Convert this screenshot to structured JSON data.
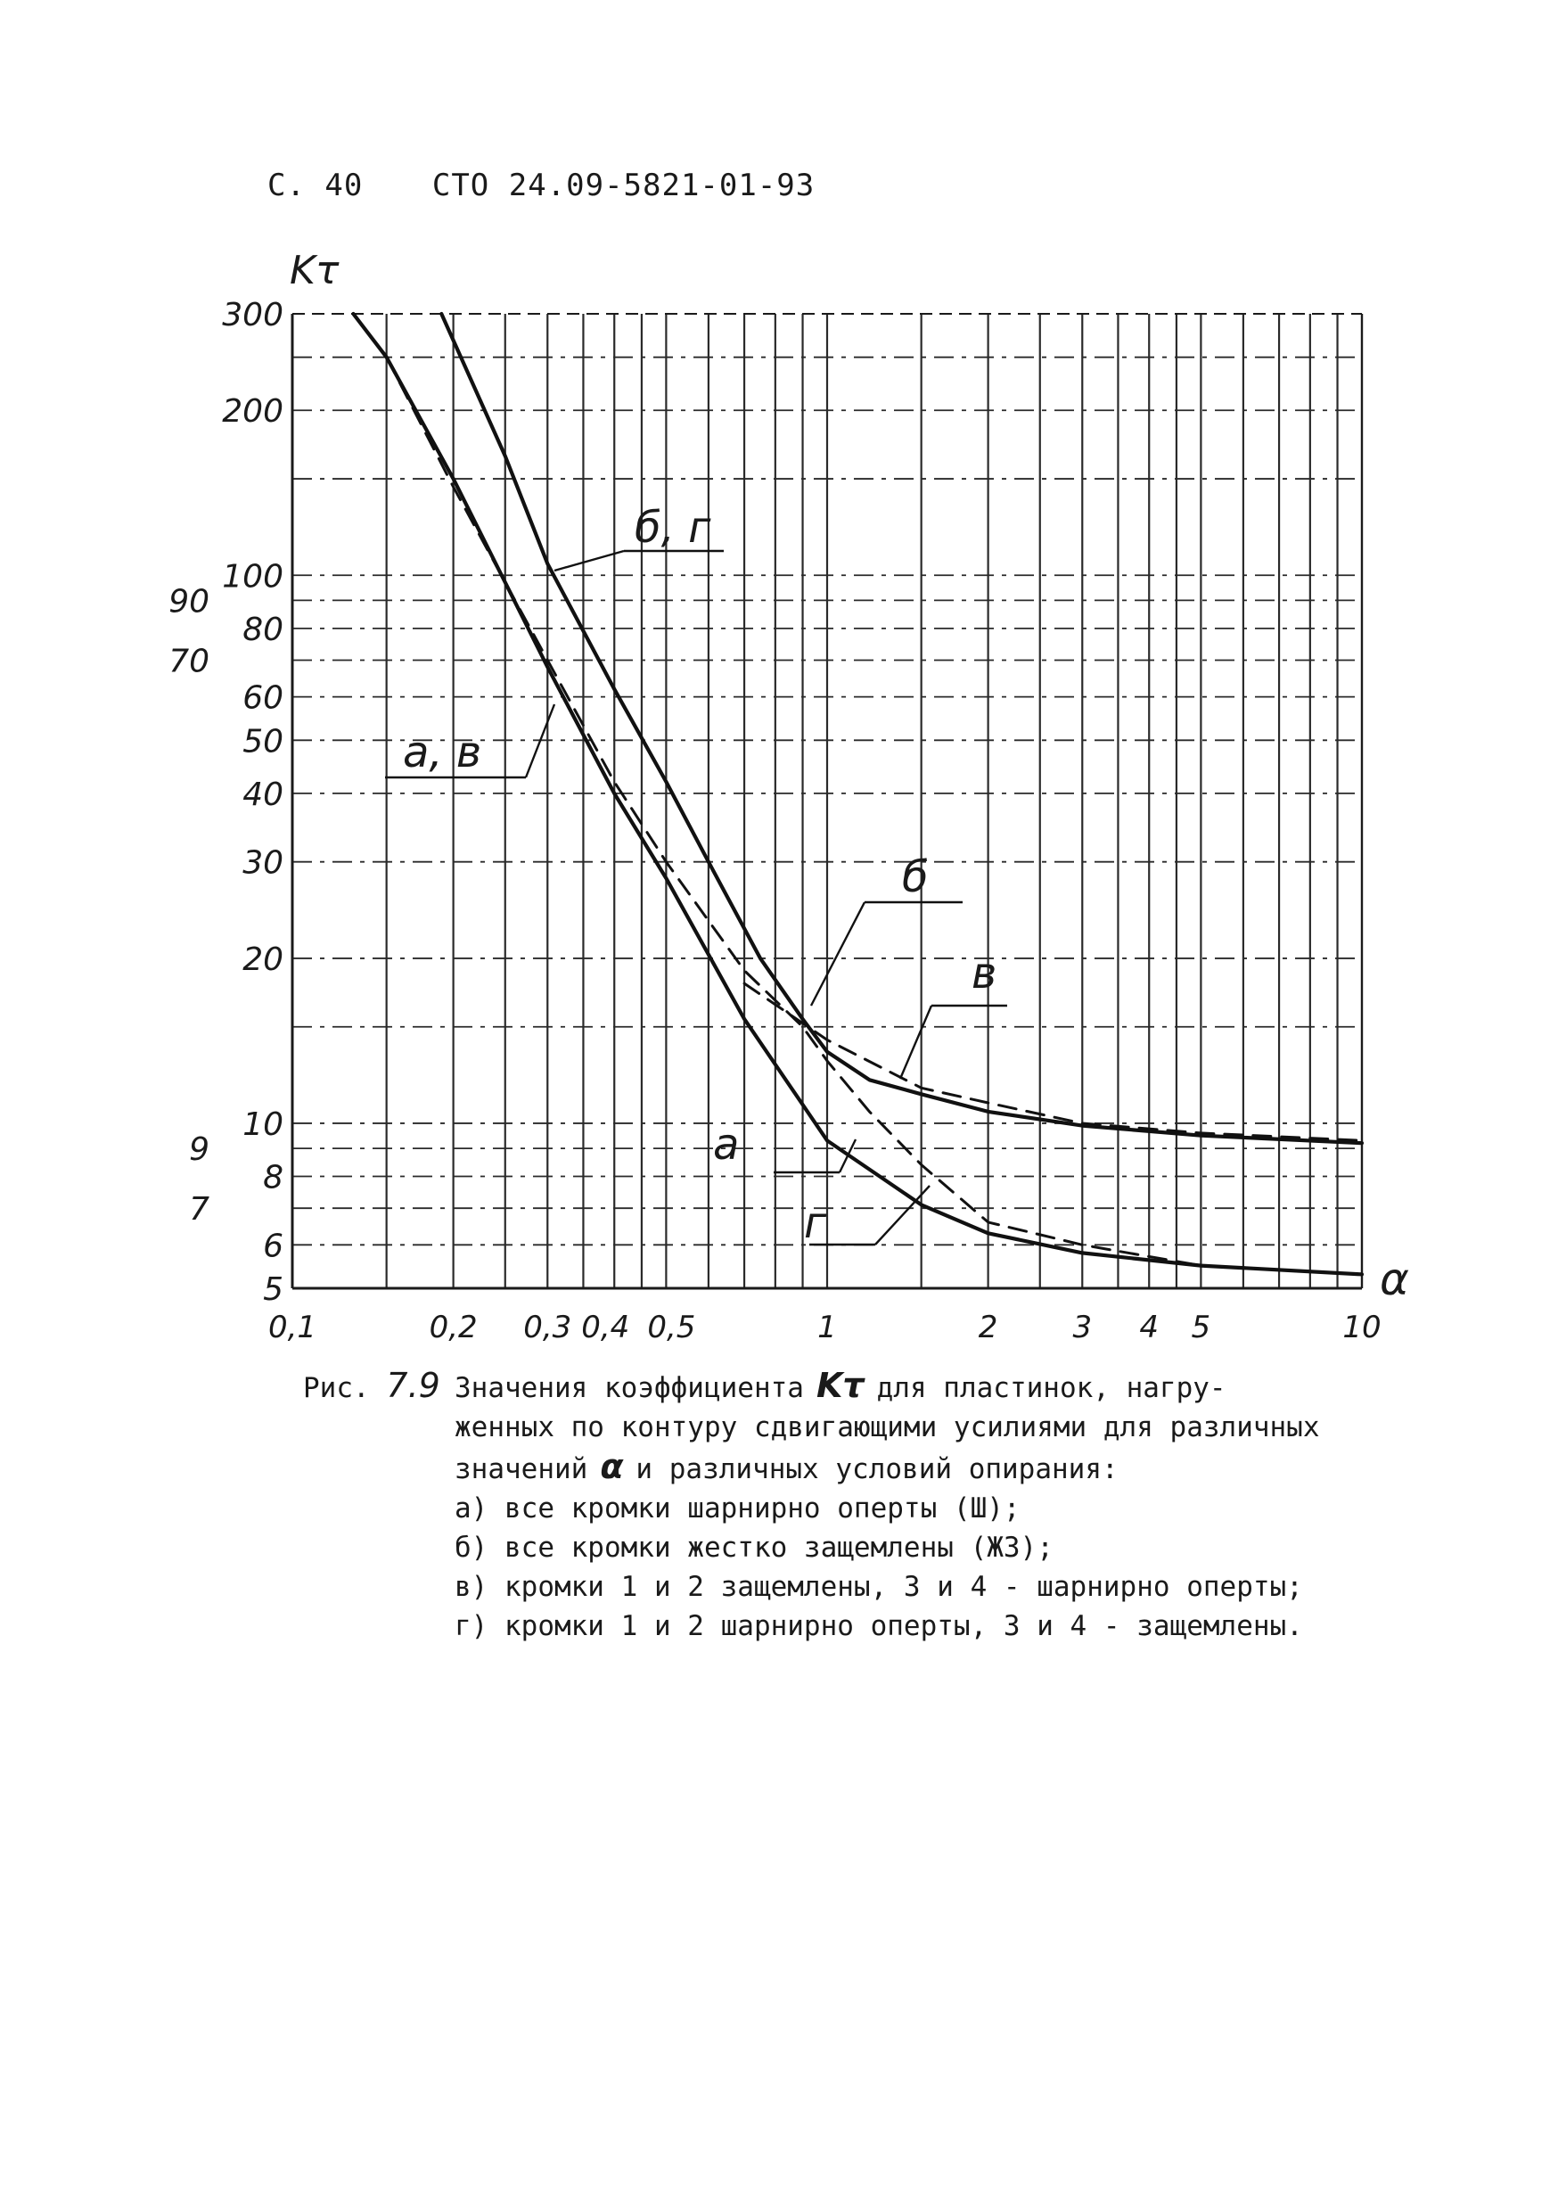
{
  "header": {
    "page": "С. 40",
    "standard": "СТО 24.09-5821-01-93"
  },
  "chart_data": {
    "type": "line",
    "xscale": "log",
    "yscale": "log",
    "xlim": [
      0.1,
      10
    ],
    "ylim": [
      5,
      300
    ],
    "ylabel": "Kτ",
    "xlabel": "α",
    "x_ticks": [
      "0,1",
      "0,2",
      "0,3",
      "0,4",
      "0,5",
      "1",
      "2",
      "3",
      "4",
      "5",
      "10"
    ],
    "y_ticks": [
      "5",
      "6",
      "7",
      "8",
      "9",
      "10",
      "20",
      "30",
      "40",
      "50",
      "60",
      "70",
      "80",
      "90",
      "100",
      "200",
      "300"
    ],
    "grid": true,
    "series": [
      {
        "name": "а",
        "style": "solid",
        "x": [
          0.13,
          0.15,
          0.2,
          0.3,
          0.4,
          0.5,
          0.7,
          1.0,
          1.5,
          2,
          3,
          5,
          10
        ],
        "y": [
          300,
          250,
          150,
          68,
          40,
          28,
          15.5,
          9.3,
          7.1,
          6.3,
          5.8,
          5.5,
          5.3
        ]
      },
      {
        "name": "б",
        "style": "dashed",
        "x": [
          0.7,
          1.0,
          1.5,
          2,
          3,
          5,
          10
        ],
        "y": [
          18,
          14.2,
          11.6,
          10.9,
          10.0,
          9.6,
          9.3
        ]
      },
      {
        "name": "в",
        "style": "solid",
        "x": [
          0.19,
          0.25,
          0.3,
          0.4,
          0.5,
          0.6,
          0.75,
          0.9,
          1.0,
          1.2,
          1.5,
          2,
          3,
          5,
          10
        ],
        "y": [
          300,
          165,
          105,
          62,
          42,
          30,
          20,
          15.5,
          13.5,
          12.0,
          11.3,
          10.5,
          9.9,
          9.5,
          9.2
        ]
      },
      {
        "name": "г",
        "style": "dashed",
        "x": [
          0.15,
          0.2,
          0.3,
          0.4,
          0.5,
          0.7,
          0.9,
          1.0,
          1.2,
          1.5,
          2,
          3,
          5,
          10
        ],
        "y": [
          250,
          145,
          70,
          42,
          30,
          19,
          15,
          13,
          10.5,
          8.4,
          6.6,
          6.0,
          5.5,
          5.3
        ]
      }
    ],
    "annotations": [
      "б, г",
      "а, в",
      "б",
      "в",
      "а",
      "г"
    ]
  },
  "caption": {
    "fig_prefix": "Рис.",
    "fig_number": "7.9",
    "line1_a": "Значения коэффициента",
    "symbol_k": "Kτ",
    "line1_b": "для пластинок, нагру-",
    "line2": "женных по контуру сдвигающими усилиями для различных",
    "line3_a": "значений",
    "symbol_alpha": "α",
    "line3_b": "и различных условий опирания:",
    "items": [
      "а) все кромки шарнирно оперты (Ш);",
      "б) все кромки жестко защемлены (ЖЗ);",
      "в) кромки 1 и 2 защемлены, 3 и 4 - шарнирно оперты;",
      "г) кромки 1 и 2 шарнирно оперты, 3 и 4 - защемлены."
    ]
  }
}
